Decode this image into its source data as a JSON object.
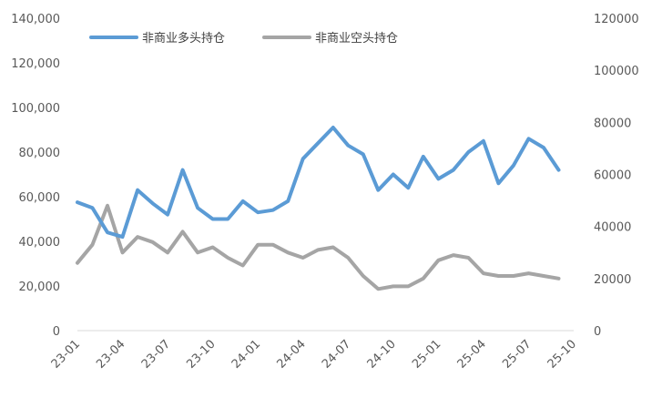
{
  "chart_data": {
    "type": "line",
    "x": [
      "23-01",
      "23-02",
      "23-03",
      "23-04",
      "23-05",
      "23-06",
      "23-07",
      "23-08",
      "23-09",
      "23-10",
      "23-11",
      "23-12",
      "24-01",
      "24-02",
      "24-03",
      "24-04",
      "24-05",
      "24-06",
      "24-07",
      "24-08",
      "24-09",
      "24-10",
      "24-11",
      "24-12",
      "25-01",
      "25-02",
      "25-03",
      "25-04",
      "25-05",
      "25-06",
      "25-07",
      "25-08",
      "25-09"
    ],
    "x_ticks": [
      "23-01",
      "23-04",
      "23-07",
      "23-10",
      "24-01",
      "24-04",
      "24-07",
      "24-10",
      "25-01",
      "25-04",
      "25-07",
      "25-10"
    ],
    "series": [
      {
        "name": "非商业多头持仓",
        "axis": "left",
        "color": "#5b9bd5",
        "values": [
          57500,
          55000,
          44000,
          42000,
          63000,
          57000,
          52000,
          72000,
          55000,
          50000,
          50000,
          58000,
          53000,
          54000,
          58000,
          77000,
          84000,
          91000,
          83000,
          79000,
          63000,
          70000,
          64000,
          78000,
          68000,
          72000,
          80000,
          85000,
          66000,
          74000,
          86000,
          82000,
          72000
        ]
      },
      {
        "name": "非商业空头持仓",
        "axis": "right",
        "color": "#a5a5a5",
        "values": [
          26000,
          33000,
          48000,
          30000,
          36000,
          34000,
          30000,
          38000,
          30000,
          32000,
          28000,
          25000,
          33000,
          33000,
          30000,
          28000,
          31000,
          32000,
          28000,
          21000,
          16000,
          17000,
          17000,
          20000,
          27000,
          29000,
          28000,
          22000,
          21000,
          21000,
          22000,
          21000,
          20000
        ]
      }
    ],
    "y_left": {
      "min": 0,
      "max": 140000,
      "step": 20000,
      "tick_labels": [
        "0",
        "20,000",
        "40,000",
        "60,000",
        "80,000",
        "100,000",
        "120,000",
        "140,000"
      ]
    },
    "y_right": {
      "min": 0,
      "max": 120000,
      "step": 20000,
      "tick_labels": [
        "0",
        "20000",
        "40000",
        "60000",
        "80000",
        "100000",
        "120000"
      ]
    },
    "legend_placement": "top-left",
    "grid": false,
    "title": "",
    "xlabel": "",
    "ylabel": ""
  },
  "legend": {
    "long_label": "非商业多头持仓",
    "short_label": "非商业空头持仓"
  }
}
